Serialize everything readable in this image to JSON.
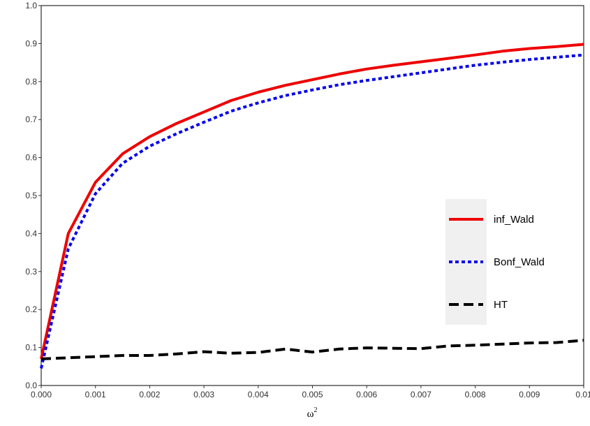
{
  "chart_data": {
    "type": "line",
    "title": "",
    "xlabel": "ω",
    "xlabel_superscript": "2",
    "ylabel": "",
    "xlim": [
      0,
      0.01
    ],
    "ylim": [
      0,
      1.0
    ],
    "x_tick_labels": [
      "0.000",
      "0.001",
      "0.002",
      "0.003",
      "0.004",
      "0.005",
      "0.006",
      "0.007",
      "0.008",
      "0.009",
      "0.01"
    ],
    "y_tick_labels": [
      "0.0",
      "0.1",
      "0.2",
      "0.3",
      "0.4",
      "0.5",
      "0.6",
      "0.7",
      "0.8",
      "0.9",
      "1.0"
    ],
    "grid": false,
    "legend_position": "right",
    "x": [
      0,
      0.0005,
      0.001,
      0.0015,
      0.002,
      0.0025,
      0.003,
      0.0035,
      0.004,
      0.0045,
      0.005,
      0.0055,
      0.006,
      0.0065,
      0.007,
      0.0075,
      0.008,
      0.0085,
      0.009,
      0.0095,
      0.01
    ],
    "series": [
      {
        "name": "inf_Wald",
        "color": "#ee0000",
        "dash": "solid",
        "values": [
          0.07,
          0.4,
          0.535,
          0.61,
          0.655,
          0.69,
          0.72,
          0.75,
          0.772,
          0.79,
          0.805,
          0.82,
          0.833,
          0.843,
          0.852,
          0.861,
          0.87,
          0.88,
          0.887,
          0.892,
          0.898
        ]
      },
      {
        "name": "Bonf_Wald",
        "color": "#0000ee",
        "dash": "dotted",
        "values": [
          0.045,
          0.36,
          0.505,
          0.585,
          0.63,
          0.663,
          0.693,
          0.722,
          0.744,
          0.763,
          0.778,
          0.792,
          0.803,
          0.813,
          0.823,
          0.833,
          0.843,
          0.851,
          0.858,
          0.864,
          0.87
        ]
      },
      {
        "name": "HT",
        "color": "#000000",
        "dash": "dashed",
        "values": [
          0.07,
          0.073,
          0.076,
          0.079,
          0.079,
          0.083,
          0.089,
          0.085,
          0.087,
          0.096,
          0.088,
          0.096,
          0.099,
          0.098,
          0.097,
          0.104,
          0.106,
          0.109,
          0.112,
          0.113,
          0.119
        ]
      }
    ]
  }
}
